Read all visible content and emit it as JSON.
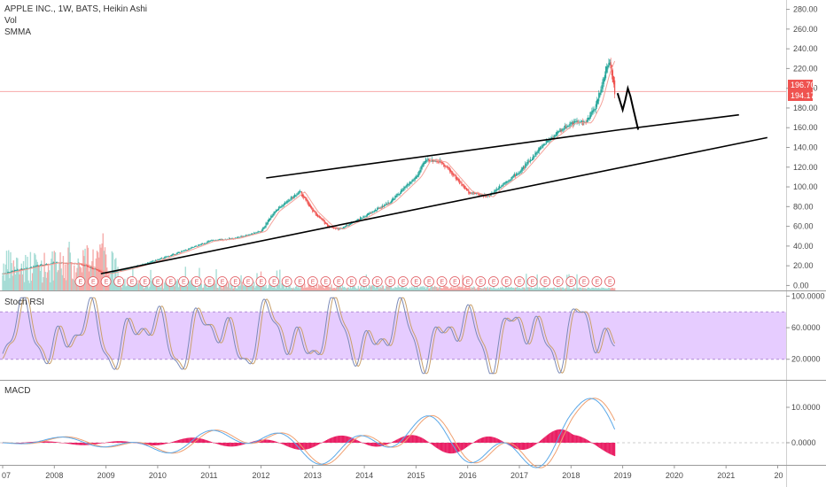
{
  "header": {
    "symbol_line": "APPLE INC., 1W, BATS, Heikin Ashi",
    "indicator_vol": "Vol",
    "indicator_smma": "SMMA"
  },
  "price_tags": {
    "last": "196.70",
    "smma": "194.17"
  },
  "panes": {
    "stoch_title": "Stoch RSI",
    "macd_title": "MACD"
  },
  "event_marker_label": "E",
  "colors": {
    "up": "#26a69a",
    "down": "#ef5350",
    "smma": "#f4a29a",
    "stoch_k": "#7b8ab8",
    "stoch_d": "#c9a06a",
    "stoch_band": "#e6ccff",
    "macd_line": "#5aa8e8",
    "signal_line": "#f0a070",
    "hist": "#e91e63",
    "trendline": "#000000",
    "price_line": "#f7a9a8"
  },
  "chart_data": [
    {
      "type": "candlestick",
      "title": "APPLE INC., 1W, BATS, Heikin Ashi",
      "x_ticks": [
        "07",
        "2008",
        "2009",
        "2010",
        "2011",
        "2012",
        "2013",
        "2014",
        "2015",
        "2016",
        "2017",
        "2018",
        "2019",
        "2020",
        "2021",
        "20"
      ],
      "y_ticks": [
        "0.00",
        "20.00",
        "40.00",
        "60.00",
        "80.00",
        "100.00",
        "120.00",
        "140.00",
        "160.00",
        "180.00",
        "200.00",
        "220.00",
        "240.00",
        "260.00",
        "280.00"
      ],
      "ylim": [
        -5,
        285
      ],
      "grid": false,
      "price_series": {
        "name": "SMMA",
        "x": [
          2007.0,
          2007.5,
          2008.0,
          2008.5,
          2009.0,
          2009.5,
          2010.0,
          2010.5,
          2011.0,
          2011.5,
          2012.0,
          2012.25,
          2012.5,
          2012.75,
          2013.0,
          2013.3,
          2013.5,
          2014.0,
          2014.5,
          2015.0,
          2015.2,
          2015.5,
          2015.75,
          2016.0,
          2016.4,
          2016.6,
          2017.0,
          2017.5,
          2018.0,
          2018.3,
          2018.5,
          2018.65,
          2018.75,
          2018.85
        ],
        "values": [
          12,
          18,
          23,
          22,
          12,
          18,
          26,
          35,
          45,
          48,
          55,
          75,
          85,
          95,
          75,
          60,
          57,
          70,
          85,
          110,
          128,
          125,
          110,
          95,
          90,
          100,
          115,
          145,
          165,
          165,
          185,
          215,
          228,
          194
        ]
      },
      "annotations": [
        {
          "label": "upper trendline",
          "points": [
            [
              2012.1,
              109
            ],
            [
              2018.95,
              158
            ],
            [
              2021.25,
              173
            ]
          ]
        },
        {
          "label": "lower trendline",
          "points": [
            [
              2008.9,
              12
            ],
            [
              2021.8,
              150
            ]
          ]
        },
        {
          "label": "drawn projection",
          "points": [
            [
              2018.9,
              195
            ],
            [
              2019.0,
              178
            ],
            [
              2019.05,
              188
            ],
            [
              2019.1,
              200
            ],
            [
              2019.15,
              192
            ],
            [
              2019.2,
              180
            ],
            [
              2019.3,
              158
            ]
          ]
        }
      ],
      "last_price": 196.7
    },
    {
      "type": "line",
      "title": "Stoch RSI",
      "y_ticks": [
        "20.0000",
        "60.0000",
        "100.0000"
      ],
      "ylim": [
        -5,
        105
      ],
      "band": [
        20,
        80
      ],
      "series": []
    },
    {
      "type": "line",
      "title": "MACD",
      "y_ticks": [
        "0.0000",
        "10.0000"
      ],
      "ylim": [
        -6,
        17
      ],
      "series": []
    }
  ]
}
